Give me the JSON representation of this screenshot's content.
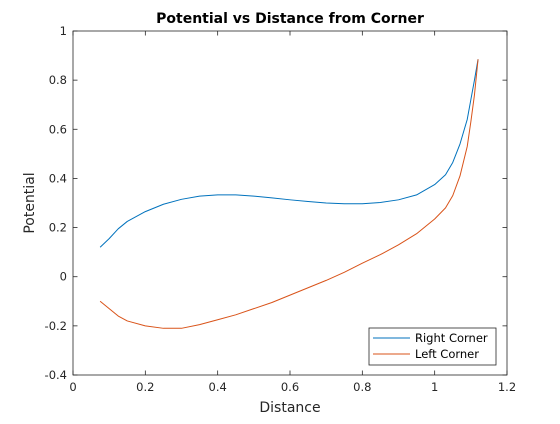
{
  "chart_data": {
    "type": "line",
    "title": "Potential vs Distance from Corner",
    "xlabel": "Distance",
    "ylabel": "Potential",
    "xlim": [
      0,
      1.2
    ],
    "ylim": [
      -0.4,
      1
    ],
    "xticks": [
      0,
      0.2,
      0.4,
      0.6,
      0.8,
      1,
      1.2
    ],
    "xtick_labels": [
      "0",
      "0.2",
      "0.4",
      "0.6",
      "0.8",
      "1",
      "1.2"
    ],
    "yticks": [
      -0.4,
      -0.2,
      0,
      0.2,
      0.4,
      0.6,
      0.8,
      1
    ],
    "ytick_labels": [
      "-0.4",
      "-0.2",
      "0",
      "0.2",
      "0.4",
      "0.6",
      "0.8",
      "1"
    ],
    "grid": false,
    "legend_position": "bottom-right",
    "series": [
      {
        "name": "Right Corner",
        "color": "#0072BD",
        "x": [
          0.075,
          0.1,
          0.125,
          0.15,
          0.2,
          0.25,
          0.3,
          0.35,
          0.4,
          0.45,
          0.5,
          0.55,
          0.6,
          0.65,
          0.7,
          0.75,
          0.8,
          0.85,
          0.9,
          0.95,
          1.0,
          1.03,
          1.05,
          1.07,
          1.09,
          1.1,
          1.11,
          1.12
        ],
        "y": [
          0.12,
          0.155,
          0.195,
          0.225,
          0.265,
          0.295,
          0.315,
          0.328,
          0.333,
          0.333,
          0.328,
          0.321,
          0.313,
          0.306,
          0.3,
          0.297,
          0.297,
          0.302,
          0.313,
          0.333,
          0.375,
          0.415,
          0.465,
          0.54,
          0.64,
          0.72,
          0.8,
          0.885
        ]
      },
      {
        "name": "Left Corner",
        "color": "#D95319",
        "x": [
          0.075,
          0.1,
          0.125,
          0.15,
          0.2,
          0.25,
          0.3,
          0.35,
          0.4,
          0.45,
          0.5,
          0.55,
          0.6,
          0.65,
          0.7,
          0.75,
          0.8,
          0.85,
          0.9,
          0.95,
          1.0,
          1.03,
          1.05,
          1.07,
          1.09,
          1.1,
          1.11,
          1.12
        ],
        "y": [
          -0.1,
          -0.13,
          -0.16,
          -0.18,
          -0.2,
          -0.21,
          -0.21,
          -0.195,
          -0.175,
          -0.155,
          -0.13,
          -0.105,
          -0.075,
          -0.045,
          -0.015,
          0.018,
          0.055,
          0.09,
          0.13,
          0.175,
          0.235,
          0.28,
          0.33,
          0.41,
          0.53,
          0.63,
          0.74,
          0.885
        ]
      }
    ]
  }
}
